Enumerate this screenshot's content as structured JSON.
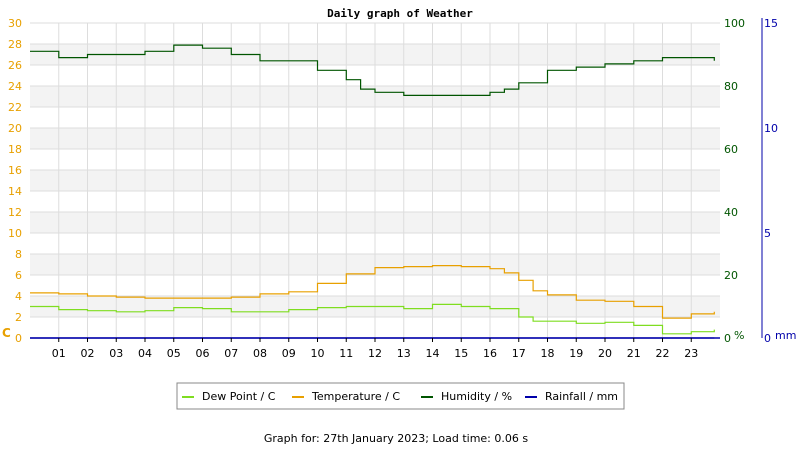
{
  "chart_data": {
    "type": "line",
    "title": "Daily graph of Weather",
    "footer": "Graph for: 27th January 2023; Load time: 0.06 s",
    "x_ticks": [
      "01",
      "02",
      "03",
      "04",
      "05",
      "06",
      "07",
      "08",
      "09",
      "10",
      "11",
      "12",
      "13",
      "14",
      "15",
      "16",
      "17",
      "18",
      "19",
      "20",
      "21",
      "22",
      "23"
    ],
    "x_range": [
      0,
      24
    ],
    "axes": {
      "left": {
        "unit": "C",
        "range": [
          0,
          30
        ],
        "ticks": [
          0,
          2,
          4,
          6,
          8,
          10,
          12,
          14,
          16,
          18,
          20,
          22,
          24,
          26,
          28,
          30
        ],
        "color": "#e8a000"
      },
      "humidity": {
        "unit": "%",
        "range": [
          0,
          100
        ],
        "ticks": [
          0,
          20,
          40,
          60,
          80,
          100
        ],
        "color": "#005500"
      },
      "rainfall": {
        "unit": "mm",
        "range": [
          0,
          15
        ],
        "ticks": [
          0,
          5,
          10,
          15
        ],
        "color": "#0000aa"
      }
    },
    "grid": true,
    "legend_position": "bottom",
    "series": [
      {
        "name": "Dew Point / C",
        "axis": "left",
        "color": "#7fdd20",
        "x": [
          0,
          1,
          2,
          3,
          4,
          5,
          6,
          7,
          8,
          9,
          10,
          11,
          12,
          13,
          14,
          15,
          16,
          17,
          17.5,
          18,
          19,
          20,
          21,
          22,
          23,
          23.8
        ],
        "y": [
          3.0,
          2.7,
          2.6,
          2.5,
          2.6,
          2.9,
          2.8,
          2.5,
          2.5,
          2.7,
          2.9,
          3.0,
          3.0,
          2.8,
          3.2,
          3.0,
          2.8,
          2.0,
          1.6,
          1.6,
          1.4,
          1.5,
          1.2,
          0.4,
          0.6,
          0.8
        ]
      },
      {
        "name": "Temperature / C",
        "axis": "left",
        "color": "#e8a000",
        "x": [
          0,
          1,
          2,
          3,
          4,
          5,
          6,
          7,
          8,
          9,
          10,
          11,
          12,
          13,
          14,
          15,
          16,
          16.5,
          17,
          17.5,
          18,
          19,
          20,
          21,
          22,
          23,
          23.8
        ],
        "y": [
          4.3,
          4.2,
          4.0,
          3.9,
          3.8,
          3.8,
          3.8,
          3.9,
          4.2,
          4.4,
          5.2,
          6.1,
          6.7,
          6.8,
          6.9,
          6.8,
          6.6,
          6.2,
          5.5,
          4.5,
          4.1,
          3.6,
          3.5,
          3.0,
          1.9,
          2.3,
          2.5
        ]
      },
      {
        "name": "Humidity / %",
        "axis": "humidity",
        "color": "#005500",
        "x": [
          0,
          1,
          2,
          3,
          4,
          5,
          6,
          7,
          8,
          9,
          10,
          11,
          11.5,
          12,
          13,
          14,
          15,
          16,
          16.5,
          17,
          18,
          19,
          20,
          21,
          22,
          23,
          23.8
        ],
        "y": [
          91,
          89,
          90,
          90,
          91,
          93,
          92,
          90,
          88,
          88,
          85,
          82,
          79,
          78,
          77,
          77,
          77,
          78,
          79,
          81,
          85,
          86,
          87,
          88,
          89,
          89,
          88
        ]
      },
      {
        "name": "Rainfall / mm",
        "axis": "rainfall",
        "color": "#0000aa",
        "x": [
          0,
          23.8
        ],
        "y": [
          0,
          0
        ]
      }
    ]
  }
}
